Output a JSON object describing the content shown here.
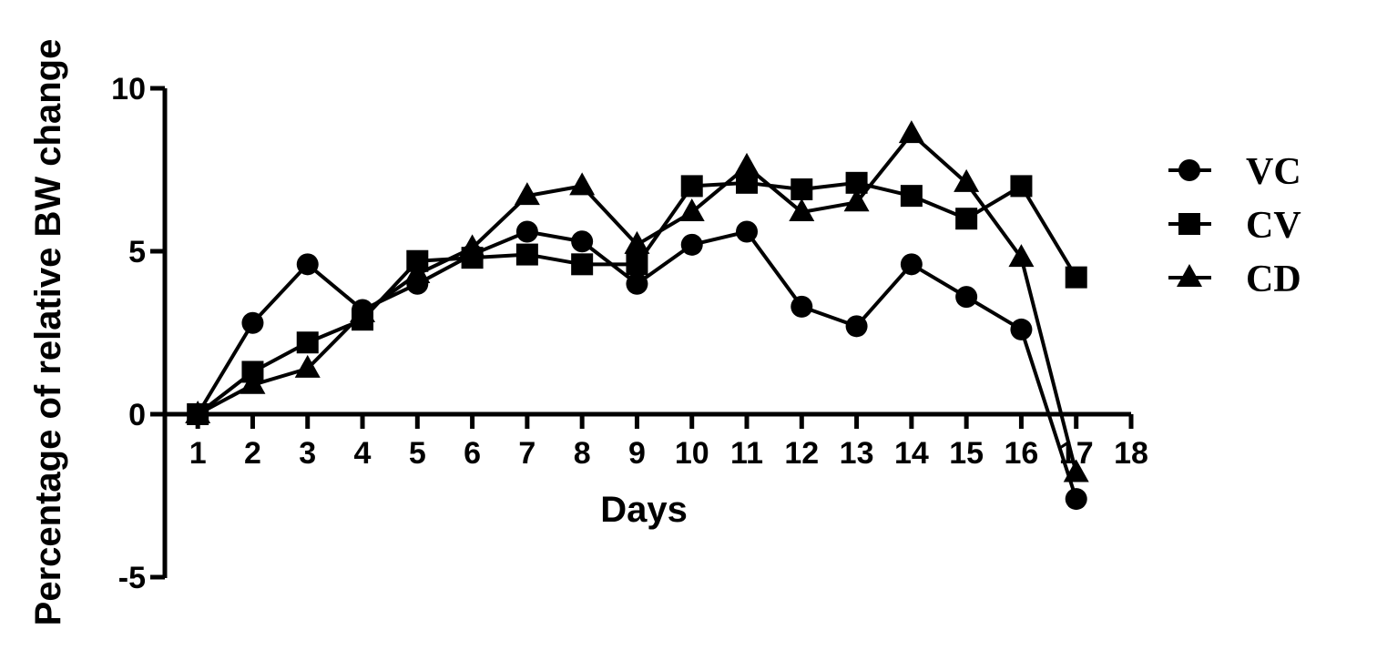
{
  "chart_data": {
    "type": "line",
    "xlabel": "Days",
    "ylabel": "Percentage of relative BW change",
    "x": [
      1,
      2,
      3,
      4,
      5,
      6,
      7,
      8,
      9,
      10,
      11,
      12,
      13,
      14,
      15,
      16,
      17
    ],
    "xticks": [
      "1",
      "2",
      "3",
      "4",
      "5",
      "6",
      "7",
      "8",
      "9",
      "10",
      "11",
      "12",
      "13",
      "14",
      "15",
      "16",
      "17",
      "18"
    ],
    "xlim": [
      0.4,
      18
    ],
    "yticks": [
      "10",
      "5",
      "0",
      "-5"
    ],
    "ylim": [
      -5,
      10
    ],
    "grid": false,
    "legend_position": "right",
    "series": [
      {
        "name": "VC",
        "marker": "circle",
        "values": [
          0,
          2.8,
          4.6,
          3.2,
          4.0,
          4.9,
          5.6,
          5.3,
          4.0,
          5.2,
          5.6,
          3.3,
          2.7,
          4.6,
          3.6,
          2.6,
          -2.6
        ]
      },
      {
        "name": "CV",
        "marker": "square",
        "values": [
          0,
          1.3,
          2.2,
          2.9,
          4.7,
          4.8,
          4.9,
          4.6,
          4.6,
          7.0,
          7.1,
          6.9,
          7.1,
          6.7,
          6.0,
          7.0,
          4.2
        ]
      },
      {
        "name": "CD",
        "marker": "triangle",
        "values": [
          0,
          0.9,
          1.4,
          3.1,
          4.3,
          5.1,
          6.7,
          7.0,
          5.2,
          6.2,
          7.6,
          6.2,
          6.5,
          8.6,
          7.1,
          4.8,
          -1.8
        ]
      }
    ],
    "colors": {
      "line": "#000000",
      "background": "#ffffff"
    }
  }
}
